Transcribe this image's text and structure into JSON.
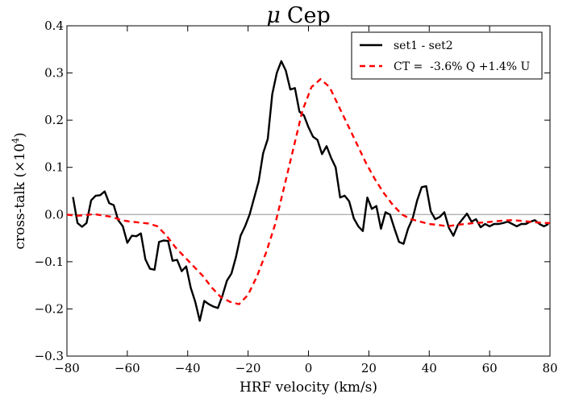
{
  "chart_data": {
    "type": "line",
    "title_symbol": "μ",
    "title_text": "Cep",
    "xlabel": "HRF velocity (km/s)",
    "ylabel": "cross-talk (×10",
    "ylabel_exp": "4",
    "ylabel_close": ")",
    "xlim": [
      -80,
      80
    ],
    "ylim": [
      -0.3,
      0.4
    ],
    "xticks": [
      -80,
      -60,
      -40,
      -20,
      0,
      20,
      40,
      60,
      80
    ],
    "xtick_labels": [
      "−80",
      "−60",
      "−40",
      "−20",
      "0",
      "20",
      "40",
      "60",
      "80"
    ],
    "yticks": [
      -0.3,
      -0.2,
      -0.1,
      0.0,
      0.1,
      0.2,
      0.3,
      0.4
    ],
    "ytick_labels": [
      "−0.3",
      "−0.2",
      "−0.1",
      "0.0",
      "0.1",
      "0.2",
      "0.3",
      "0.4"
    ],
    "zero_line": true,
    "legend_position": "top-right",
    "series": [
      {
        "name": "set1 - set2",
        "color": "#000000",
        "dash": "solid",
        "x": [
          -78,
          -76.5,
          -75,
          -73.5,
          -72,
          -70.5,
          -69,
          -67.5,
          -66,
          -64.5,
          -63,
          -61.5,
          -60,
          -58.5,
          -57,
          -55.5,
          -54,
          -52.5,
          -51,
          -49.5,
          -48,
          -46.5,
          -45,
          -43.5,
          -42,
          -40.5,
          -39,
          -37.5,
          -36,
          -34.5,
          -33,
          -31.5,
          -30,
          -28.5,
          -27,
          -25.5,
          -24,
          -22.5,
          -21,
          -19.5,
          -18,
          -16.5,
          -15,
          -13.5,
          -12,
          -10.5,
          -9,
          -7.5,
          -6,
          -4.5,
          -3,
          -1.5,
          0,
          1.5,
          3,
          4.5,
          6,
          7.5,
          9,
          10.5,
          12,
          13.5,
          15,
          16.5,
          18,
          19.5,
          21,
          22.5,
          24,
          25.5,
          27,
          28.5,
          30,
          31.5,
          33,
          34.5,
          36,
          37.5,
          39,
          40.5,
          42,
          43.5,
          45,
          46.5,
          48,
          49.5,
          51,
          52.5,
          54,
          55.5,
          57,
          58.5,
          60,
          61.5,
          63,
          64.5,
          66,
          67.5,
          69,
          70.5,
          72,
          73.5,
          75,
          76.5,
          78,
          79.5
        ],
        "y": [
          0.037,
          -0.018,
          -0.026,
          -0.018,
          0.03,
          0.04,
          0.041,
          0.049,
          0.024,
          0.02,
          -0.012,
          -0.025,
          -0.06,
          -0.045,
          -0.046,
          -0.04,
          -0.095,
          -0.115,
          -0.117,
          -0.058,
          -0.055,
          -0.056,
          -0.098,
          -0.096,
          -0.12,
          -0.11,
          -0.155,
          -0.185,
          -0.225,
          -0.183,
          -0.19,
          -0.195,
          -0.198,
          -0.172,
          -0.14,
          -0.125,
          -0.09,
          -0.045,
          -0.025,
          0.0,
          0.035,
          0.07,
          0.13,
          0.16,
          0.255,
          0.3,
          0.325,
          0.305,
          0.265,
          0.268,
          0.218,
          0.21,
          0.185,
          0.165,
          0.158,
          0.128,
          0.145,
          0.12,
          0.1,
          0.036,
          0.04,
          0.028,
          -0.008,
          -0.025,
          -0.035,
          0.036,
          0.012,
          0.018,
          -0.03,
          0.005,
          0.0,
          -0.03,
          -0.058,
          -0.062,
          -0.03,
          -0.008,
          0.03,
          0.058,
          0.06,
          0.007,
          -0.01,
          -0.005,
          0.005,
          -0.028,
          -0.045,
          -0.022,
          -0.01,
          0.002,
          -0.015,
          -0.01,
          -0.027,
          -0.02,
          -0.025,
          -0.02,
          -0.02,
          -0.018,
          -0.015,
          -0.02,
          -0.025,
          -0.02,
          -0.02,
          -0.015,
          -0.012,
          -0.02,
          -0.025,
          -0.02
        ]
      },
      {
        "name": "CT =  -3.6% Q +1.4% U",
        "color": "#ff0000",
        "dash": "dashed",
        "x": [
          -80,
          -77,
          -74,
          -71,
          -68,
          -65,
          -62,
          -59,
          -56,
          -53,
          -50,
          -47,
          -44,
          -41,
          -38,
          -35,
          -32,
          -29,
          -26,
          -23,
          -20,
          -17,
          -14,
          -11,
          -8,
          -5,
          -2,
          1,
          4,
          7,
          10,
          13,
          16,
          19,
          22,
          25,
          28,
          31,
          34,
          37,
          40,
          43,
          46,
          49,
          52,
          55,
          58,
          61,
          64,
          67,
          70,
          73,
          76,
          79,
          80
        ],
        "y": [
          0.0,
          -0.003,
          -0.001,
          0.001,
          -0.002,
          -0.005,
          -0.012,
          -0.015,
          -0.017,
          -0.019,
          -0.025,
          -0.045,
          -0.07,
          -0.09,
          -0.11,
          -0.13,
          -0.155,
          -0.175,
          -0.185,
          -0.19,
          -0.17,
          -0.13,
          -0.08,
          -0.02,
          0.06,
          0.14,
          0.22,
          0.27,
          0.287,
          0.27,
          0.23,
          0.19,
          0.15,
          0.11,
          0.075,
          0.045,
          0.02,
          0.0,
          -0.01,
          -0.015,
          -0.02,
          -0.022,
          -0.025,
          -0.022,
          -0.02,
          -0.018,
          -0.017,
          -0.015,
          -0.013,
          -0.012,
          -0.013,
          -0.015,
          -0.017,
          -0.018,
          -0.018
        ]
      }
    ]
  }
}
